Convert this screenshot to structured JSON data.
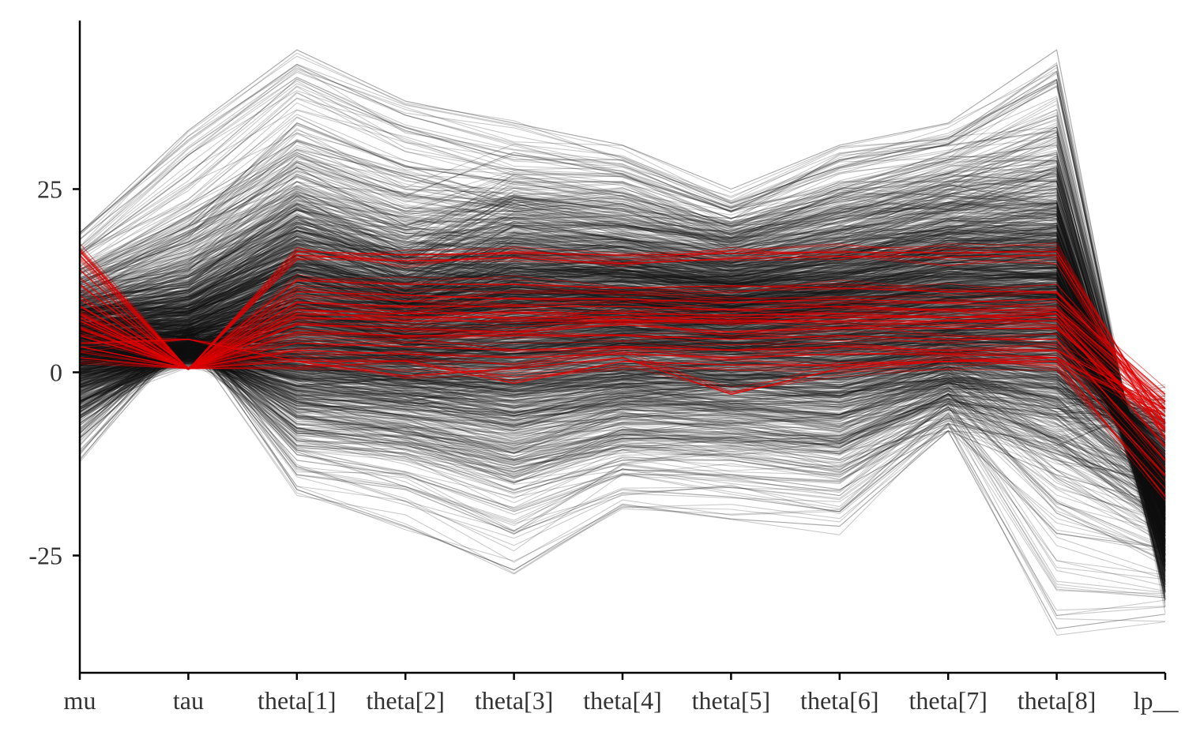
{
  "chart_data": {
    "type": "line",
    "subtype": "parallel-coordinates",
    "title": "",
    "xlabel": "",
    "ylabel": "",
    "categories": [
      "mu",
      "tau",
      "theta[1]",
      "theta[2]",
      "theta[3]",
      "theta[4]",
      "theta[5]",
      "theta[6]",
      "theta[7]",
      "theta[8]",
      "lp__"
    ],
    "y_ticks": [
      -25,
      0,
      25
    ],
    "y_tick_labels": [
      "-25",
      "0",
      "25"
    ],
    "ylim": [
      -41,
      48
    ],
    "grid": false,
    "legend": "none",
    "colors": {
      "draws": "#111111",
      "divergent": "#e00000"
    },
    "series": [
      {
        "group": "draws",
        "values": [
          19,
          33,
          44,
          37,
          34,
          31,
          25,
          31,
          34,
          44,
          -32
        ]
      },
      {
        "group": "draws",
        "values": [
          16,
          27,
          40,
          33,
          29,
          29,
          23,
          28,
          32,
          40,
          -30
        ]
      },
      {
        "group": "draws",
        "values": [
          12,
          20,
          34,
          28,
          26,
          26,
          21,
          25,
          30,
          35,
          -28
        ]
      },
      {
        "group": "draws",
        "values": [
          10,
          15,
          27,
          22,
          22,
          21,
          19,
          22,
          27,
          26,
          -26
        ]
      },
      {
        "group": "draws",
        "values": [
          8,
          12,
          23,
          19,
          19,
          18,
          17,
          19,
          23,
          22,
          -24
        ]
      },
      {
        "group": "draws",
        "values": [
          6,
          10,
          20,
          16,
          16,
          16,
          14,
          16,
          20,
          20,
          -22
        ]
      },
      {
        "group": "draws",
        "values": [
          4,
          8,
          16,
          13,
          13,
          13,
          12,
          13,
          17,
          17,
          -20
        ]
      },
      {
        "group": "draws",
        "values": [
          2,
          6,
          12,
          10,
          10,
          10,
          9,
          10,
          13,
          13,
          -17
        ]
      },
      {
        "group": "draws",
        "values": [
          0,
          4,
          8,
          6,
          6,
          7,
          6,
          6,
          9,
          9,
          -14
        ]
      },
      {
        "group": "draws",
        "values": [
          -2,
          3,
          4,
          2,
          1,
          3,
          2,
          2,
          5,
          4,
          -10
        ]
      },
      {
        "group": "draws",
        "values": [
          -4,
          2,
          0,
          -2,
          -3,
          -1,
          -2,
          -2,
          1,
          0,
          -6
        ]
      },
      {
        "group": "draws",
        "values": [
          -5,
          2,
          -4,
          -6,
          -8,
          -5,
          -6,
          -7,
          -3,
          -5,
          -2
        ]
      },
      {
        "group": "draws",
        "values": [
          -7,
          3,
          -8,
          -10,
          -13,
          -10,
          -10,
          -12,
          -7,
          -10,
          -4
        ]
      },
      {
        "group": "draws",
        "values": [
          -9,
          4,
          -12,
          -14,
          -19,
          -14,
          -14,
          -16,
          -8,
          -14,
          -18
        ]
      },
      {
        "group": "draws",
        "values": [
          -12,
          6,
          -16,
          -21,
          -27,
          -18,
          -20,
          -21,
          -8,
          -35,
          -33
        ]
      },
      {
        "group": "draws",
        "values": [
          14,
          22,
          30,
          24,
          30,
          27,
          22,
          29,
          31,
          33,
          -29
        ]
      },
      {
        "group": "draws",
        "values": [
          11,
          17,
          25,
          18,
          27,
          24,
          20,
          26,
          26,
          30,
          -27
        ]
      },
      {
        "group": "draws",
        "values": [
          9,
          13,
          21,
          15,
          23,
          20,
          18,
          21,
          24,
          24,
          -25
        ]
      },
      {
        "group": "draws",
        "values": [
          7,
          11,
          18,
          12,
          20,
          17,
          15,
          17,
          21,
          21,
          -23
        ]
      },
      {
        "group": "draws",
        "values": [
          5,
          9,
          14,
          9,
          15,
          14,
          12,
          14,
          18,
          18,
          -21
        ]
      },
      {
        "group": "draws",
        "values": [
          3,
          7,
          10,
          7,
          11,
          11,
          9,
          11,
          14,
          15,
          -19
        ]
      },
      {
        "group": "draws",
        "values": [
          1,
          5,
          6,
          4,
          7,
          8,
          6,
          8,
          10,
          11,
          -16
        ]
      },
      {
        "group": "draws",
        "values": [
          -1,
          4,
          2,
          0,
          3,
          4,
          3,
          4,
          6,
          7,
          -13
        ]
      },
      {
        "group": "draws",
        "values": [
          -3,
          3,
          -2,
          -4,
          -2,
          0,
          -1,
          0,
          2,
          3,
          -9
        ]
      },
      {
        "group": "draws",
        "values": [
          -6,
          3,
          -6,
          -8,
          -11,
          -6,
          -8,
          -9,
          -4,
          -6,
          -7
        ]
      },
      {
        "group": "draws",
        "values": [
          -8,
          5,
          -10,
          -11,
          -16,
          -12,
          -12,
          -14,
          -6,
          -12,
          -15
        ]
      },
      {
        "group": "draws",
        "values": [
          -10,
          6,
          -14,
          -16,
          -22,
          -16,
          -17,
          -19,
          -7,
          -22,
          -24
        ]
      },
      {
        "group": "draws",
        "values": [
          12,
          19,
          28,
          20,
          24,
          22,
          21,
          24,
          29,
          31,
          -31
        ]
      },
      {
        "group": "draws",
        "values": [
          9,
          14,
          24,
          16,
          20,
          20,
          17,
          20,
          25,
          27,
          -30
        ]
      },
      {
        "group": "draws",
        "values": [
          7,
          11,
          19,
          13,
          17,
          17,
          15,
          18,
          22,
          23,
          -29
        ]
      },
      {
        "group": "draws",
        "values": [
          5,
          9,
          16,
          11,
          13,
          15,
          13,
          15,
          19,
          19,
          -27
        ]
      },
      {
        "group": "draws",
        "values": [
          3,
          7,
          13,
          8,
          10,
          12,
          10,
          12,
          15,
          16,
          -25
        ]
      },
      {
        "group": "draws",
        "values": [
          1,
          5,
          9,
          5,
          6,
          9,
          7,
          9,
          11,
          12,
          -22
        ]
      },
      {
        "group": "draws",
        "values": [
          0,
          4,
          5,
          3,
          3,
          5,
          4,
          5,
          7,
          8,
          -18
        ]
      },
      {
        "group": "draws",
        "values": [
          -2,
          3,
          1,
          -1,
          -1,
          1,
          0,
          1,
          3,
          4,
          -14
        ]
      },
      {
        "group": "draws",
        "values": [
          -4,
          3,
          -3,
          -5,
          -6,
          -4,
          -4,
          -4,
          -1,
          -2,
          -11
        ]
      },
      {
        "group": "draws",
        "values": [
          -6,
          4,
          -7,
          -9,
          -12,
          -9,
          -9,
          -10,
          -4,
          -9,
          -20
        ]
      },
      {
        "group": "divergent",
        "values": [
          16.5,
          0.4,
          16.5,
          16.0,
          16.3,
          16.0,
          16.2,
          16.4,
          16.3,
          16.5,
          -7
        ]
      },
      {
        "group": "divergent",
        "values": [
          16.0,
          0.4,
          16.0,
          15.2,
          15.6,
          14.8,
          15.5,
          15.8,
          15.7,
          16.0,
          -9
        ]
      },
      {
        "group": "divergent",
        "values": [
          14.0,
          0.5,
          12.5,
          12.0,
          12.0,
          11.5,
          11.8,
          11.5,
          11.0,
          11.0,
          -5
        ]
      },
      {
        "group": "divergent",
        "values": [
          12.0,
          0.6,
          11.0,
          10.5,
          10.0,
          10.0,
          9.5,
          10.0,
          9.5,
          10.0,
          -3
        ]
      },
      {
        "group": "divergent",
        "values": [
          9.0,
          0.5,
          8.5,
          8.0,
          8.2,
          8.0,
          7.8,
          8.0,
          7.5,
          8.0,
          -6
        ]
      },
      {
        "group": "divergent",
        "values": [
          8.0,
          0.4,
          8.0,
          7.5,
          7.5,
          7.5,
          7.5,
          7.5,
          7.5,
          7.5,
          -8
        ]
      },
      {
        "group": "divergent",
        "values": [
          7.5,
          0.4,
          7.5,
          7.0,
          7.0,
          7.0,
          7.0,
          7.0,
          7.0,
          7.0,
          -10
        ]
      },
      {
        "group": "divergent",
        "values": [
          7.0,
          0.5,
          6.5,
          6.0,
          5.5,
          6.5,
          5.5,
          6.0,
          6.0,
          6.0,
          -7
        ]
      },
      {
        "group": "divergent",
        "values": [
          6.0,
          0.5,
          5.5,
          5.0,
          5.0,
          5.0,
          4.5,
          5.0,
          4.5,
          4.5,
          -12
        ]
      },
      {
        "group": "divergent",
        "values": [
          5.0,
          0.6,
          4.0,
          3.5,
          3.0,
          3.5,
          3.0,
          3.5,
          3.0,
          3.0,
          -5
        ]
      },
      {
        "group": "divergent",
        "values": [
          3.5,
          0.5,
          3.0,
          2.5,
          2.0,
          2.5,
          2.0,
          2.5,
          2.5,
          2.0,
          -14
        ]
      },
      {
        "group": "divergent",
        "values": [
          2.0,
          0.5,
          1.5,
          1.5,
          -1.5,
          1.5,
          1.0,
          1.0,
          1.5,
          1.5,
          -17
        ]
      },
      {
        "group": "divergent",
        "values": [
          4.0,
          4.5,
          1.5,
          -0.5,
          0.5,
          2.0,
          -3.0,
          0.5,
          1.5,
          2.0,
          -6
        ]
      },
      {
        "group": "divergent",
        "values": [
          10.0,
          0.5,
          9.5,
          9.0,
          9.0,
          9.0,
          8.5,
          9.0,
          8.5,
          8.5,
          -4
        ]
      }
    ]
  }
}
